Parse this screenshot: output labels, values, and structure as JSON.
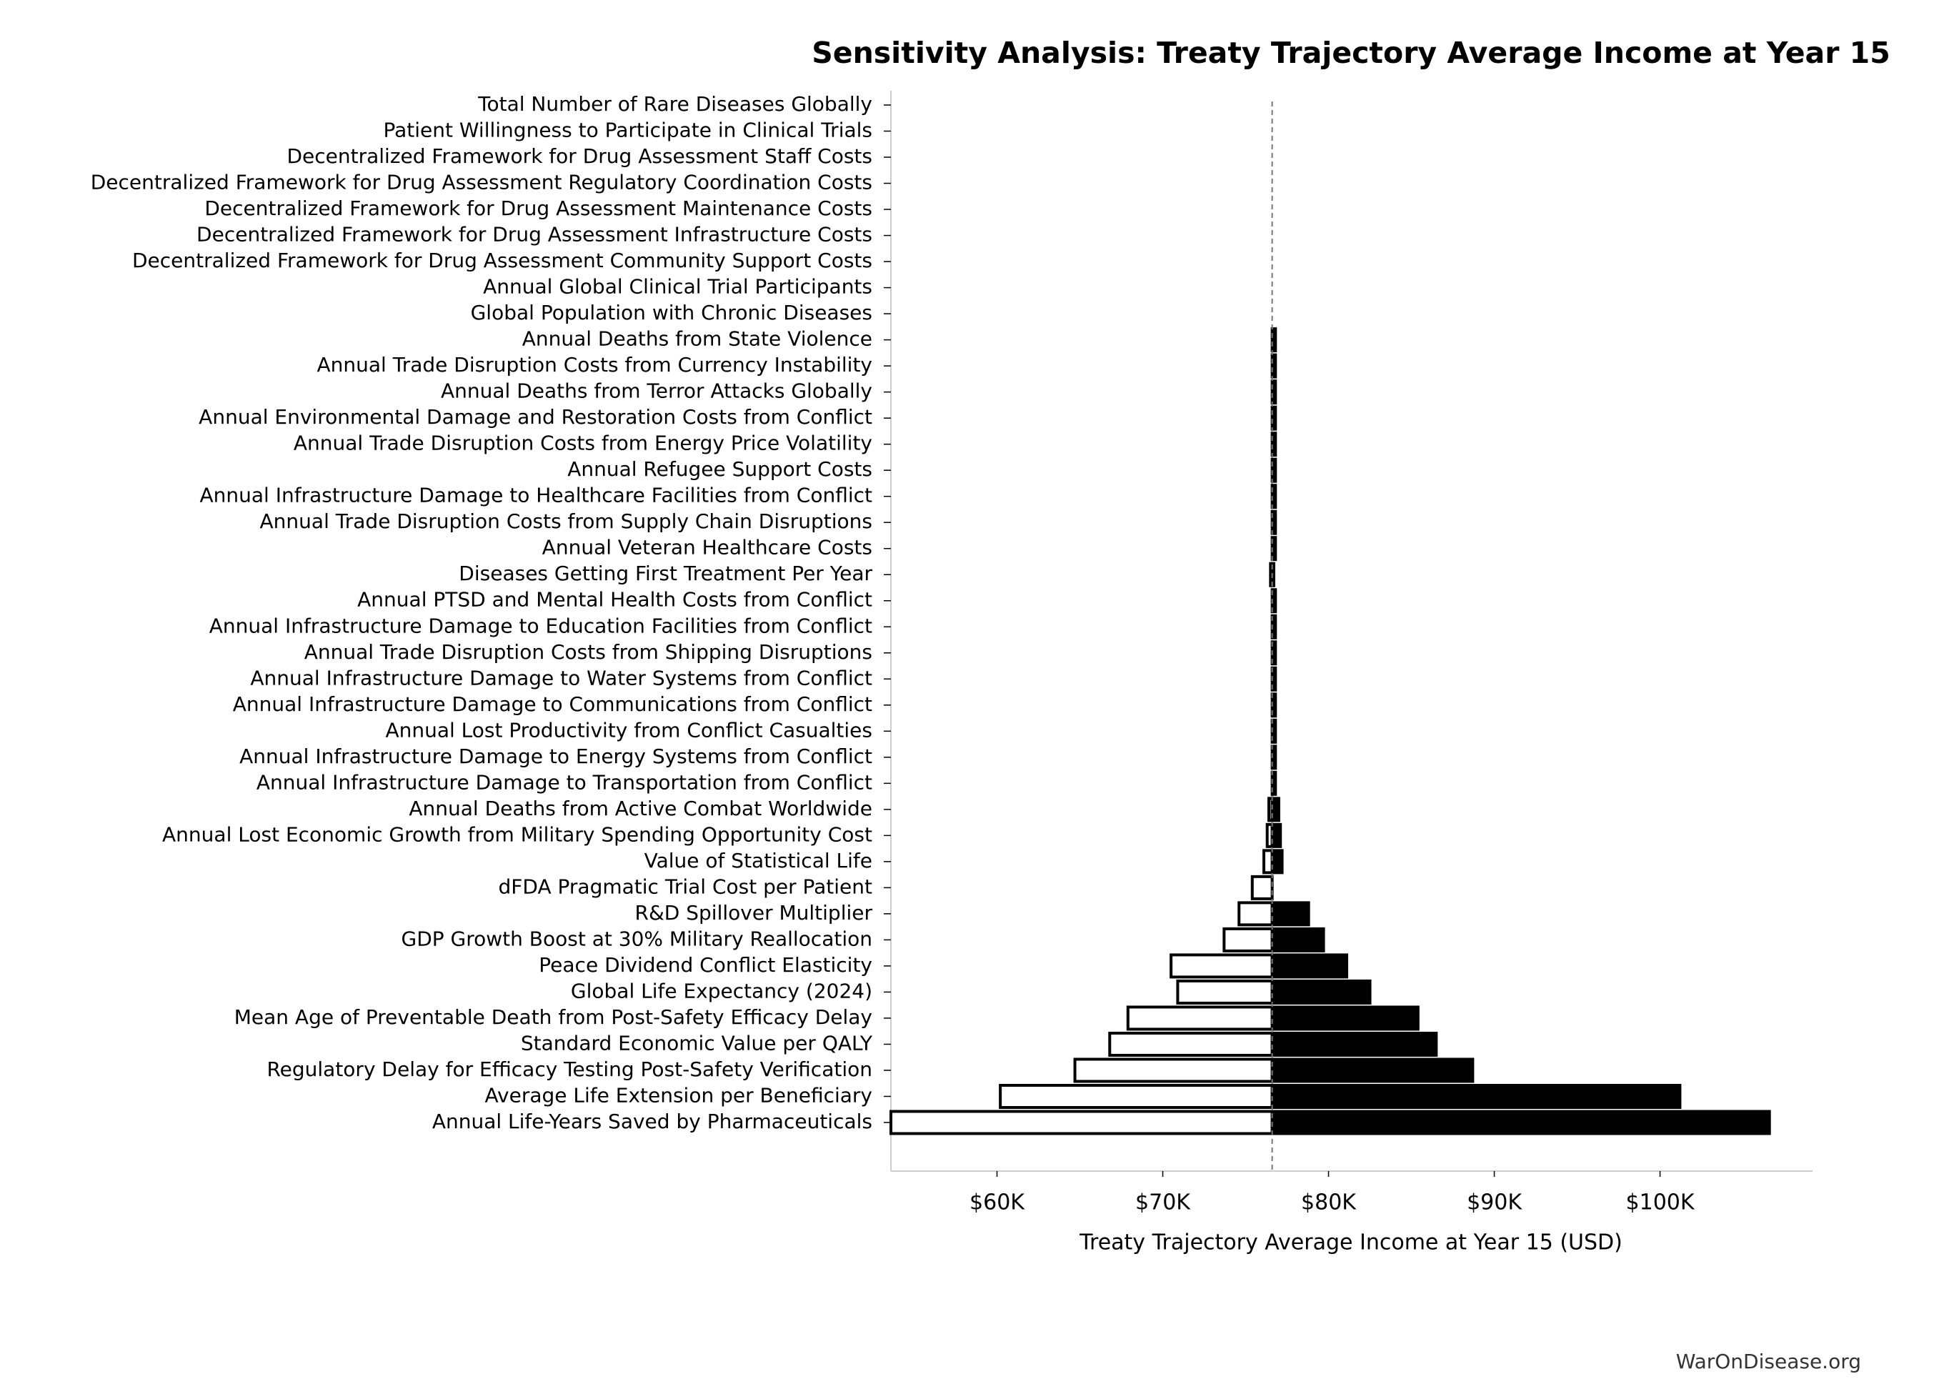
{
  "chart_data": {
    "type": "tornado",
    "title": "Sensitivity Analysis: Treaty Trajectory Average Income at Year 15",
    "xlabel": "Treaty Trajectory Average Income at Year 15 (USD)",
    "footer": "WarOnDisease.org",
    "categories": [
      "Total Number of Rare Diseases Globally",
      "Patient Willingness to Participate in Clinical Trials",
      "Decentralized Framework for Drug Assessment Staff Costs",
      "Decentralized Framework for Drug Assessment Regulatory Coordination Costs",
      "Decentralized Framework for Drug Assessment Maintenance Costs",
      "Decentralized Framework for Drug Assessment Infrastructure Costs",
      "Decentralized Framework for Drug Assessment Community Support Costs",
      "Annual Global Clinical Trial Participants",
      "Global Population with Chronic Diseases",
      "Annual Deaths from State Violence",
      "Annual Trade Disruption Costs from Currency Instability",
      "Annual Deaths from Terror Attacks Globally",
      "Annual Environmental Damage and Restoration Costs from Conflict",
      "Annual Trade Disruption Costs from Energy Price Volatility",
      "Annual Refugee Support Costs",
      "Annual Infrastructure Damage to Healthcare Facilities from Conflict",
      "Annual Trade Disruption Costs from Supply Chain Disruptions",
      "Annual Veteran Healthcare Costs",
      "Diseases Getting First Treatment Per Year",
      "Annual PTSD and Mental Health Costs from Conflict",
      "Annual Infrastructure Damage to Education Facilities from Conflict",
      "Annual Trade Disruption Costs from Shipping Disruptions",
      "Annual Infrastructure Damage to Water Systems from Conflict",
      "Annual Infrastructure Damage to Communications from Conflict",
      "Annual Lost Productivity from Conflict Casualties",
      "Annual Infrastructure Damage to Energy Systems from Conflict",
      "Annual Infrastructure Damage to Transportation from Conflict",
      "Annual Deaths from Active Combat Worldwide",
      "Annual Lost Economic Growth from Military Spending Opportunity Cost",
      "Value of Statistical Life",
      "dFDA Pragmatic Trial Cost per Patient",
      "R&D Spillover Multiplier",
      "GDP Growth Boost at 30% Military Reallocation",
      "Peace Dividend Conflict Elasticity",
      "Global Life Expectancy (2024)",
      "Mean Age of Preventable Death from Post-Safety Efficacy Delay",
      "Standard Economic Value per QALY",
      "Regulatory Delay for Efficacy Testing Post-Safety Verification",
      "Average Life Extension per Beneficiary",
      "Annual Life-Years Saved by Pharmaceuticals"
    ],
    "baseline": 76600,
    "series": [
      {
        "color": "#ffffff",
        "values": [
          76600,
          76600,
          76600,
          76600,
          76600,
          76600,
          76600,
          76600,
          76600,
          76600,
          76600,
          76600,
          76600,
          76600,
          76600,
          76600,
          76600,
          76600,
          76500,
          76600,
          76600,
          76600,
          76600,
          76600,
          76600,
          76600,
          76600,
          76400,
          76300,
          76100,
          75400,
          74600,
          73700,
          70500,
          70900,
          67900,
          66800,
          64700,
          60200,
          53600
        ]
      },
      {
        "color": "#000000",
        "values": [
          76600,
          76600,
          76600,
          76600,
          76600,
          76600,
          76600,
          76600,
          76600,
          76800,
          76800,
          76800,
          76800,
          76800,
          76800,
          76800,
          76800,
          76800,
          76700,
          76800,
          76800,
          76800,
          76800,
          76800,
          76800,
          76800,
          76800,
          77000,
          77100,
          77200,
          76600,
          78800,
          79700,
          81100,
          82500,
          85400,
          86500,
          88700,
          101200,
          106600
        ]
      }
    ],
    "xlim": [
      53600,
      109200
    ],
    "xticks": [
      {
        "value": 60000,
        "label": "$60K"
      },
      {
        "value": 70000,
        "label": "$70K"
      },
      {
        "value": 80000,
        "label": "$80K"
      },
      {
        "value": 90000,
        "label": "$90K"
      },
      {
        "value": 100000,
        "label": "$100K"
      }
    ],
    "grid": false
  }
}
